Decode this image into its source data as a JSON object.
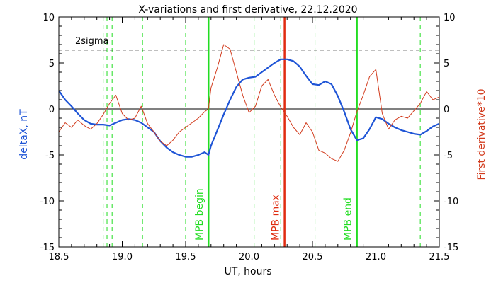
{
  "chart_data": {
    "type": "line",
    "title": "X-variations and first derivative, 22.12.2020",
    "xlabel": "UT, hours",
    "ylabel": "deltaX, nT",
    "ylabel_right": "First derivative*10",
    "xlim": [
      18.5,
      21.5
    ],
    "ylim": [
      -15,
      10
    ],
    "ylim_right": [
      -15,
      10
    ],
    "xticks": [
      "18.5",
      "19.0",
      "19.5",
      "20.0",
      "20.5",
      "21.0",
      "21.5"
    ],
    "yticks": [
      "10",
      "5",
      "0",
      "-5",
      "-10",
      "-15"
    ],
    "yticks_right": [
      "10",
      "5",
      "0",
      "-5",
      "-10",
      "-15"
    ],
    "grid": false,
    "colors": {
      "deltaX": "#1f55d6",
      "derivative": "#d23c1e",
      "marker_green": "#22dd22",
      "marker_red": "#e02c10",
      "zero_line": "#000000",
      "threshold": "#000000"
    },
    "threshold": {
      "label": "2sigma",
      "value": 6.4
    },
    "zero_line": 0,
    "events": [
      {
        "label": "MPB begin",
        "x": 19.68,
        "color": "#22dd22"
      },
      {
        "label": "MPB max",
        "x": 20.28,
        "color": "#e02c10"
      },
      {
        "label": "MPB end",
        "x": 20.85,
        "color": "#22dd22"
      }
    ],
    "dashed_markers": [
      18.85,
      18.88,
      18.92,
      19.16,
      19.5,
      20.04,
      20.25,
      20.52,
      21.35
    ],
    "series": [
      {
        "name": "deltaX, nT",
        "axis": "left",
        "x": [
          18.5,
          18.55,
          18.6,
          18.65,
          18.7,
          18.75,
          18.8,
          18.85,
          18.9,
          18.95,
          19.0,
          19.05,
          19.1,
          19.15,
          19.2,
          19.25,
          19.3,
          19.35,
          19.4,
          19.45,
          19.5,
          19.55,
          19.6,
          19.65,
          19.68,
          19.7,
          19.75,
          19.8,
          19.85,
          19.9,
          19.95,
          20.0,
          20.05,
          20.1,
          20.15,
          20.2,
          20.25,
          20.3,
          20.35,
          20.4,
          20.45,
          20.5,
          20.55,
          20.6,
          20.65,
          20.7,
          20.75,
          20.8,
          20.85,
          20.9,
          20.95,
          21.0,
          21.05,
          21.1,
          21.15,
          21.2,
          21.25,
          21.3,
          21.35,
          21.4,
          21.45,
          21.5
        ],
        "y": [
          2.0,
          1.0,
          0.3,
          -0.5,
          -1.2,
          -1.6,
          -1.7,
          -1.7,
          -1.8,
          -1.5,
          -1.2,
          -1.1,
          -1.2,
          -1.5,
          -2.0,
          -2.5,
          -3.5,
          -4.2,
          -4.7,
          -5.0,
          -5.2,
          -5.2,
          -5.0,
          -4.7,
          -5.0,
          -4.0,
          -2.3,
          -0.6,
          1.0,
          2.4,
          3.2,
          3.4,
          3.5,
          4.0,
          4.5,
          5.0,
          5.4,
          5.4,
          5.2,
          4.6,
          3.6,
          2.7,
          2.6,
          3.0,
          2.7,
          1.4,
          -0.3,
          -2.2,
          -3.4,
          -3.2,
          -2.2,
          -0.9,
          -1.1,
          -1.6,
          -2.0,
          -2.3,
          -2.5,
          -2.7,
          -2.8,
          -2.4,
          -1.9,
          -1.6
        ]
      },
      {
        "name": "First derivative*10",
        "axis": "right",
        "x": [
          18.5,
          18.55,
          18.6,
          18.65,
          18.7,
          18.75,
          18.8,
          18.85,
          18.9,
          18.95,
          19.0,
          19.05,
          19.1,
          19.15,
          19.2,
          19.25,
          19.3,
          19.35,
          19.4,
          19.45,
          19.5,
          19.55,
          19.6,
          19.65,
          19.68,
          19.7,
          19.75,
          19.8,
          19.85,
          19.9,
          19.95,
          20.0,
          20.05,
          20.1,
          20.15,
          20.2,
          20.25,
          20.3,
          20.35,
          20.4,
          20.45,
          20.5,
          20.55,
          20.6,
          20.65,
          20.7,
          20.75,
          20.8,
          20.85,
          20.9,
          20.95,
          21.0,
          21.05,
          21.1,
          21.15,
          21.2,
          21.25,
          21.3,
          21.35,
          21.4,
          21.45,
          21.5
        ],
        "y": [
          -2.5,
          -1.5,
          -2.0,
          -1.2,
          -1.8,
          -2.2,
          -1.6,
          -0.6,
          0.6,
          1.5,
          -0.5,
          -1.2,
          -1.0,
          0.3,
          -1.6,
          -2.5,
          -3.5,
          -4.0,
          -3.4,
          -2.5,
          -2.0,
          -1.5,
          -1.0,
          -0.3,
          0.0,
          2.3,
          4.5,
          7.0,
          6.5,
          4.0,
          1.5,
          -0.4,
          0.3,
          2.5,
          3.2,
          1.5,
          0.2,
          -0.8,
          -2.0,
          -2.8,
          -1.5,
          -2.5,
          -4.5,
          -4.8,
          -5.4,
          -5.7,
          -4.5,
          -2.6,
          -0.3,
          1.5,
          3.5,
          4.3,
          -0.5,
          -2.2,
          -1.2,
          -0.8,
          -1.0,
          -0.2,
          0.6,
          1.9,
          1.0,
          1.3
        ]
      }
    ]
  }
}
